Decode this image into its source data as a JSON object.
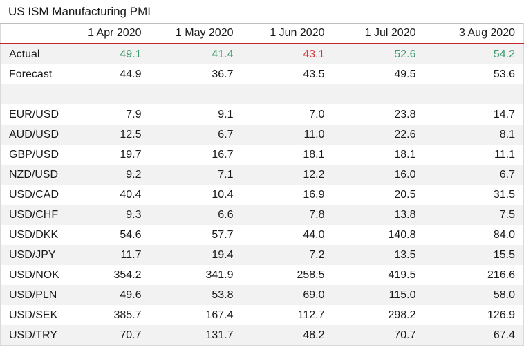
{
  "title": "US ISM Manufacturing PMI",
  "colors": {
    "positive": "#3a9a6a",
    "negative": "#d4373d",
    "header_rule": "#c0262d",
    "stripe": "#f2f2f2"
  },
  "columns": [
    "1 Apr 2020",
    "1 May 2020",
    "1 Jun 2020",
    "1 Jul 2020",
    "3 Aug 2020"
  ],
  "actual": {
    "label": "Actual",
    "values": [
      "49.1",
      "41.4",
      "43.1",
      "52.6",
      "54.2"
    ],
    "status": [
      "beat",
      "beat",
      "miss",
      "beat",
      "beat"
    ]
  },
  "forecast": {
    "label": "Forecast",
    "values": [
      "44.9",
      "36.7",
      "43.5",
      "49.5",
      "53.6"
    ]
  },
  "pairs": [
    {
      "label": "EUR/USD",
      "values": [
        "7.9",
        "9.1",
        "7.0",
        "23.8",
        "14.7"
      ]
    },
    {
      "label": "AUD/USD",
      "values": [
        "12.5",
        "6.7",
        "11.0",
        "22.6",
        "8.1"
      ]
    },
    {
      "label": "GBP/USD",
      "values": [
        "19.7",
        "16.7",
        "18.1",
        "18.1",
        "11.1"
      ]
    },
    {
      "label": "NZD/USD",
      "values": [
        "9.2",
        "7.1",
        "12.2",
        "16.0",
        "6.7"
      ]
    },
    {
      "label": "USD/CAD",
      "values": [
        "40.4",
        "10.4",
        "16.9",
        "20.5",
        "31.5"
      ]
    },
    {
      "label": "USD/CHF",
      "values": [
        "9.3",
        "6.6",
        "7.8",
        "13.8",
        "7.5"
      ]
    },
    {
      "label": "USD/DKK",
      "values": [
        "54.6",
        "57.7",
        "44.0",
        "140.8",
        "84.0"
      ]
    },
    {
      "label": "USD/JPY",
      "values": [
        "11.7",
        "19.4",
        "7.2",
        "13.5",
        "15.5"
      ]
    },
    {
      "label": "USD/NOK",
      "values": [
        "354.2",
        "341.9",
        "258.5",
        "419.5",
        "216.6"
      ]
    },
    {
      "label": "USD/PLN",
      "values": [
        "49.6",
        "53.8",
        "69.0",
        "115.0",
        "58.0"
      ]
    },
    {
      "label": "USD/SEK",
      "values": [
        "385.7",
        "167.4",
        "112.7",
        "298.2",
        "126.9"
      ]
    },
    {
      "label": "USD/TRY",
      "values": [
        "70.7",
        "131.7",
        "48.2",
        "70.7",
        "67.4"
      ]
    }
  ]
}
